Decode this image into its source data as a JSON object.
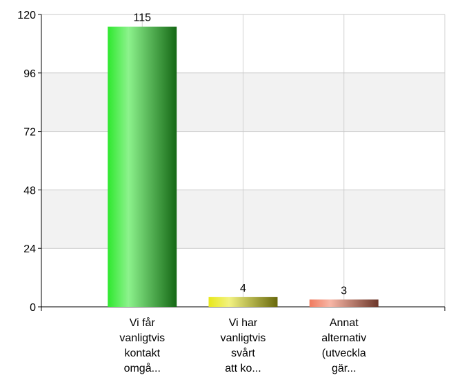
{
  "chart_data": {
    "type": "bar",
    "categories": [
      "Vi får\nvanligtvis\nkontakt\nomgå...",
      "Vi har\nvanligtvis\nsvårt\natt ko...",
      "Annat\nalternativ\n(utveckla\ngär..."
    ],
    "values": [
      115,
      4,
      3
    ],
    "colors": [
      "#2ee82e",
      "#e8e81a",
      "#f07a5e"
    ],
    "ylim": [
      0,
      120
    ],
    "yticks": [
      0,
      24,
      48,
      72,
      96,
      120
    ],
    "grid": true
  }
}
